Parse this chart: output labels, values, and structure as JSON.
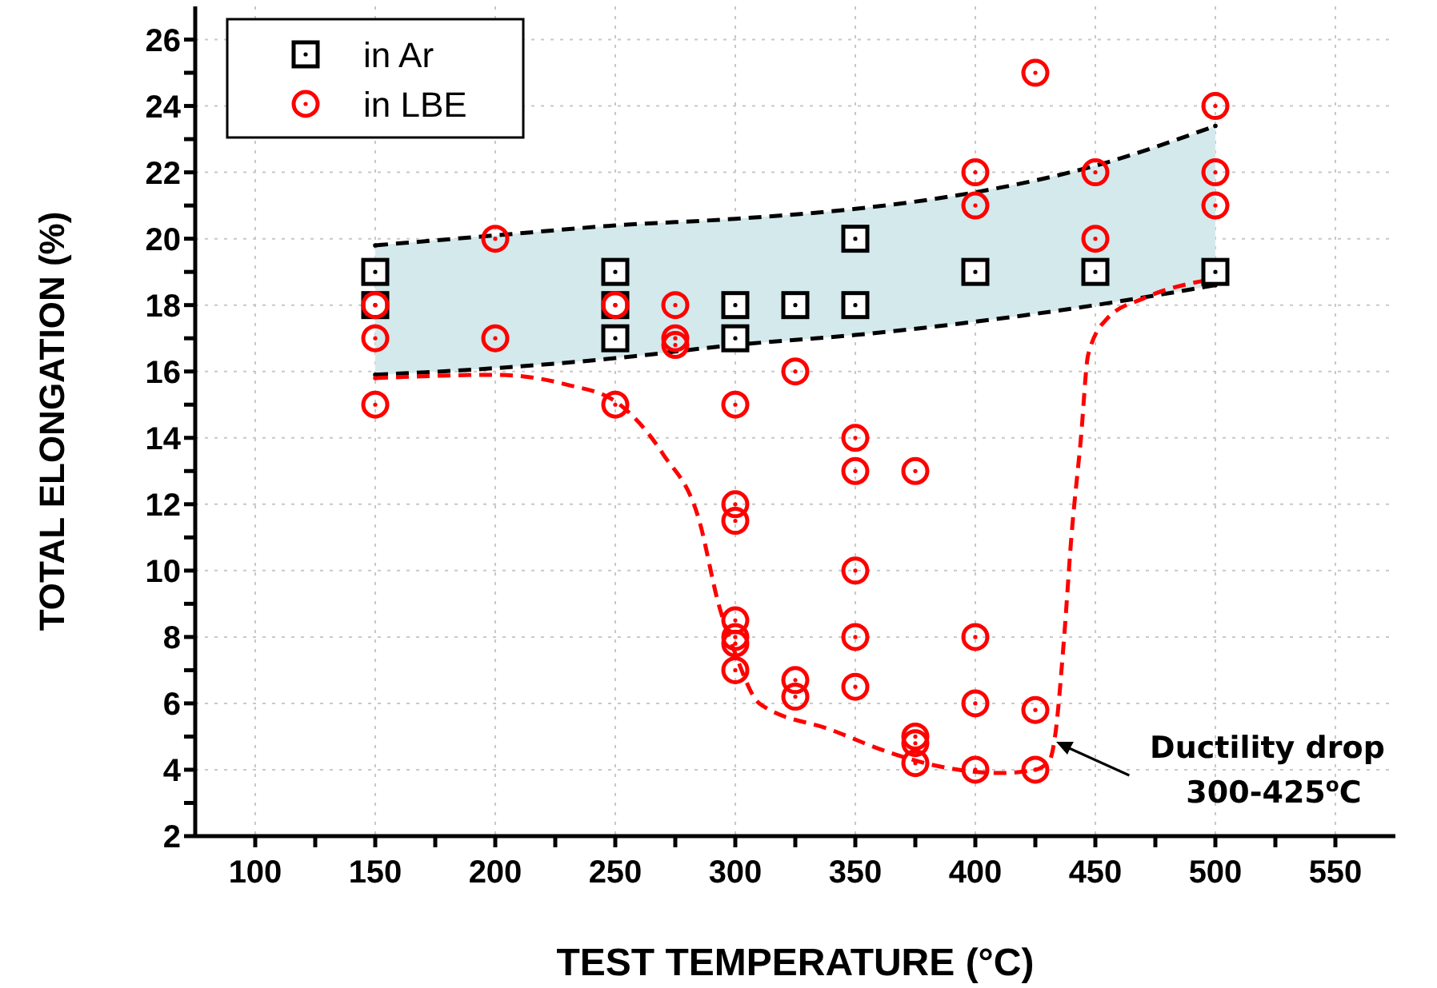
{
  "chart_data": {
    "type": "scatter",
    "xlabel": "TEST TEMPERATURE (°C)",
    "ylabel": "TOTAL ELONGATION (%)",
    "xlim": [
      75,
      575
    ],
    "xticks": [
      100,
      {
        "value": 125,
        "label": null
      },
      150,
      {
        "value": 175,
        "label": null
      },
      200,
      {
        "value": 225,
        "label": null
      },
      250,
      {
        "value": 275,
        "label": null
      },
      300,
      {
        "value": 325,
        "label": null
      },
      350,
      {
        "value": 375,
        "label": null
      },
      400,
      {
        "value": 425,
        "label": null
      },
      450,
      {
        "value": 475,
        "label": null
      },
      500,
      {
        "value": 525,
        "label": null
      },
      550
    ],
    "ylim": [
      2,
      27
    ],
    "yticks": [
      2,
      {
        "value": 3,
        "label": null
      },
      4,
      {
        "value": 5,
        "label": null
      },
      6,
      {
        "value": 7,
        "label": null
      },
      8,
      {
        "value": 9,
        "label": null
      },
      10,
      {
        "value": 11,
        "label": null
      },
      12,
      {
        "value": 13,
        "label": null
      },
      14,
      {
        "value": 15,
        "label": null
      },
      16,
      {
        "value": 17,
        "label": null
      },
      18,
      {
        "value": 19,
        "label": null
      },
      20,
      {
        "value": 21,
        "label": null
      },
      22,
      {
        "value": 23,
        "label": null
      },
      24,
      {
        "value": 25,
        "label": null
      },
      26
    ],
    "grid": true,
    "legend": "top left",
    "series": [
      {
        "type": "line",
        "color": "#000000",
        "line_style": "dashed",
        "marker": "none",
        "x": [
          150,
          200,
          250,
          300,
          350,
          400,
          450,
          500
        ],
        "values": [
          19.8,
          20.1,
          20.4,
          20.6,
          20.9,
          21.4,
          22.2,
          23.4
        ],
        "lower": [
          15.9,
          16.1,
          16.4,
          16.8,
          17.1,
          17.5,
          18.0,
          18.6
        ],
        "upper": [
          19.8,
          20.1,
          20.4,
          20.6,
          20.9,
          21.4,
          22.2,
          23.4
        ]
      },
      {
        "type": "line",
        "color": "#000000",
        "line_style": "dashed",
        "marker": "none",
        "x": [
          150,
          200,
          250,
          300,
          350,
          400,
          450,
          500
        ],
        "values": [
          15.9,
          16.1,
          16.4,
          16.8,
          17.1,
          17.5,
          18.0,
          18.6
        ]
      },
      {
        "type": "line",
        "color": "#ff0000",
        "line_style": "dashed",
        "marker": "none",
        "x": [
          150,
          200,
          230,
          250,
          270,
          285,
          293,
          300,
          310,
          340,
          365,
          385,
          410,
          425,
          431,
          433,
          437,
          440,
          444,
          447,
          455,
          470,
          500
        ],
        "values": [
          15.8,
          15.9,
          15.6,
          15.1,
          13.5,
          11.5,
          9,
          7.5,
          6.0,
          5.2,
          4.5,
          4.1,
          3.9,
          4.0,
          4.3,
          4.9,
          8,
          11,
          14,
          16.5,
          17.6,
          18.2,
          18.8
        ]
      },
      {
        "name": "in Ar",
        "type": "scatter",
        "marker": "square",
        "color": "#000000",
        "x": [
          150,
          150,
          250,
          250,
          250,
          300,
          300,
          325,
          350,
          350,
          400,
          450,
          500
        ],
        "values": [
          19,
          18,
          19,
          18,
          17,
          18,
          17,
          18,
          20,
          18,
          19,
          19,
          19
        ]
      },
      {
        "name": "in LBE",
        "type": "scatter",
        "marker": "circle",
        "color": "#ff0000",
        "x": [
          150,
          150,
          150,
          200,
          200,
          250,
          250,
          275,
          275,
          275,
          300,
          300,
          300,
          300,
          300,
          300,
          300,
          325,
          325,
          325,
          350,
          350,
          350,
          350,
          350,
          375,
          375,
          375,
          375,
          400,
          400,
          400,
          400,
          400,
          425,
          425,
          425,
          450,
          450,
          500,
          500,
          500
        ],
        "values": [
          18,
          17,
          15,
          20,
          17,
          18,
          15,
          18,
          17,
          16.8,
          15,
          12,
          11.5,
          8.5,
          8,
          7.8,
          7,
          16,
          6.7,
          6.2,
          14,
          13,
          10,
          8,
          6.5,
          13,
          5,
          4.8,
          4.2,
          22,
          21,
          8,
          6,
          4,
          25,
          5.8,
          4,
          22,
          20,
          24,
          22,
          21
        ]
      }
    ],
    "annotations": [
      "Ductility drop\n300-425$^{o}$C"
    ]
  }
}
